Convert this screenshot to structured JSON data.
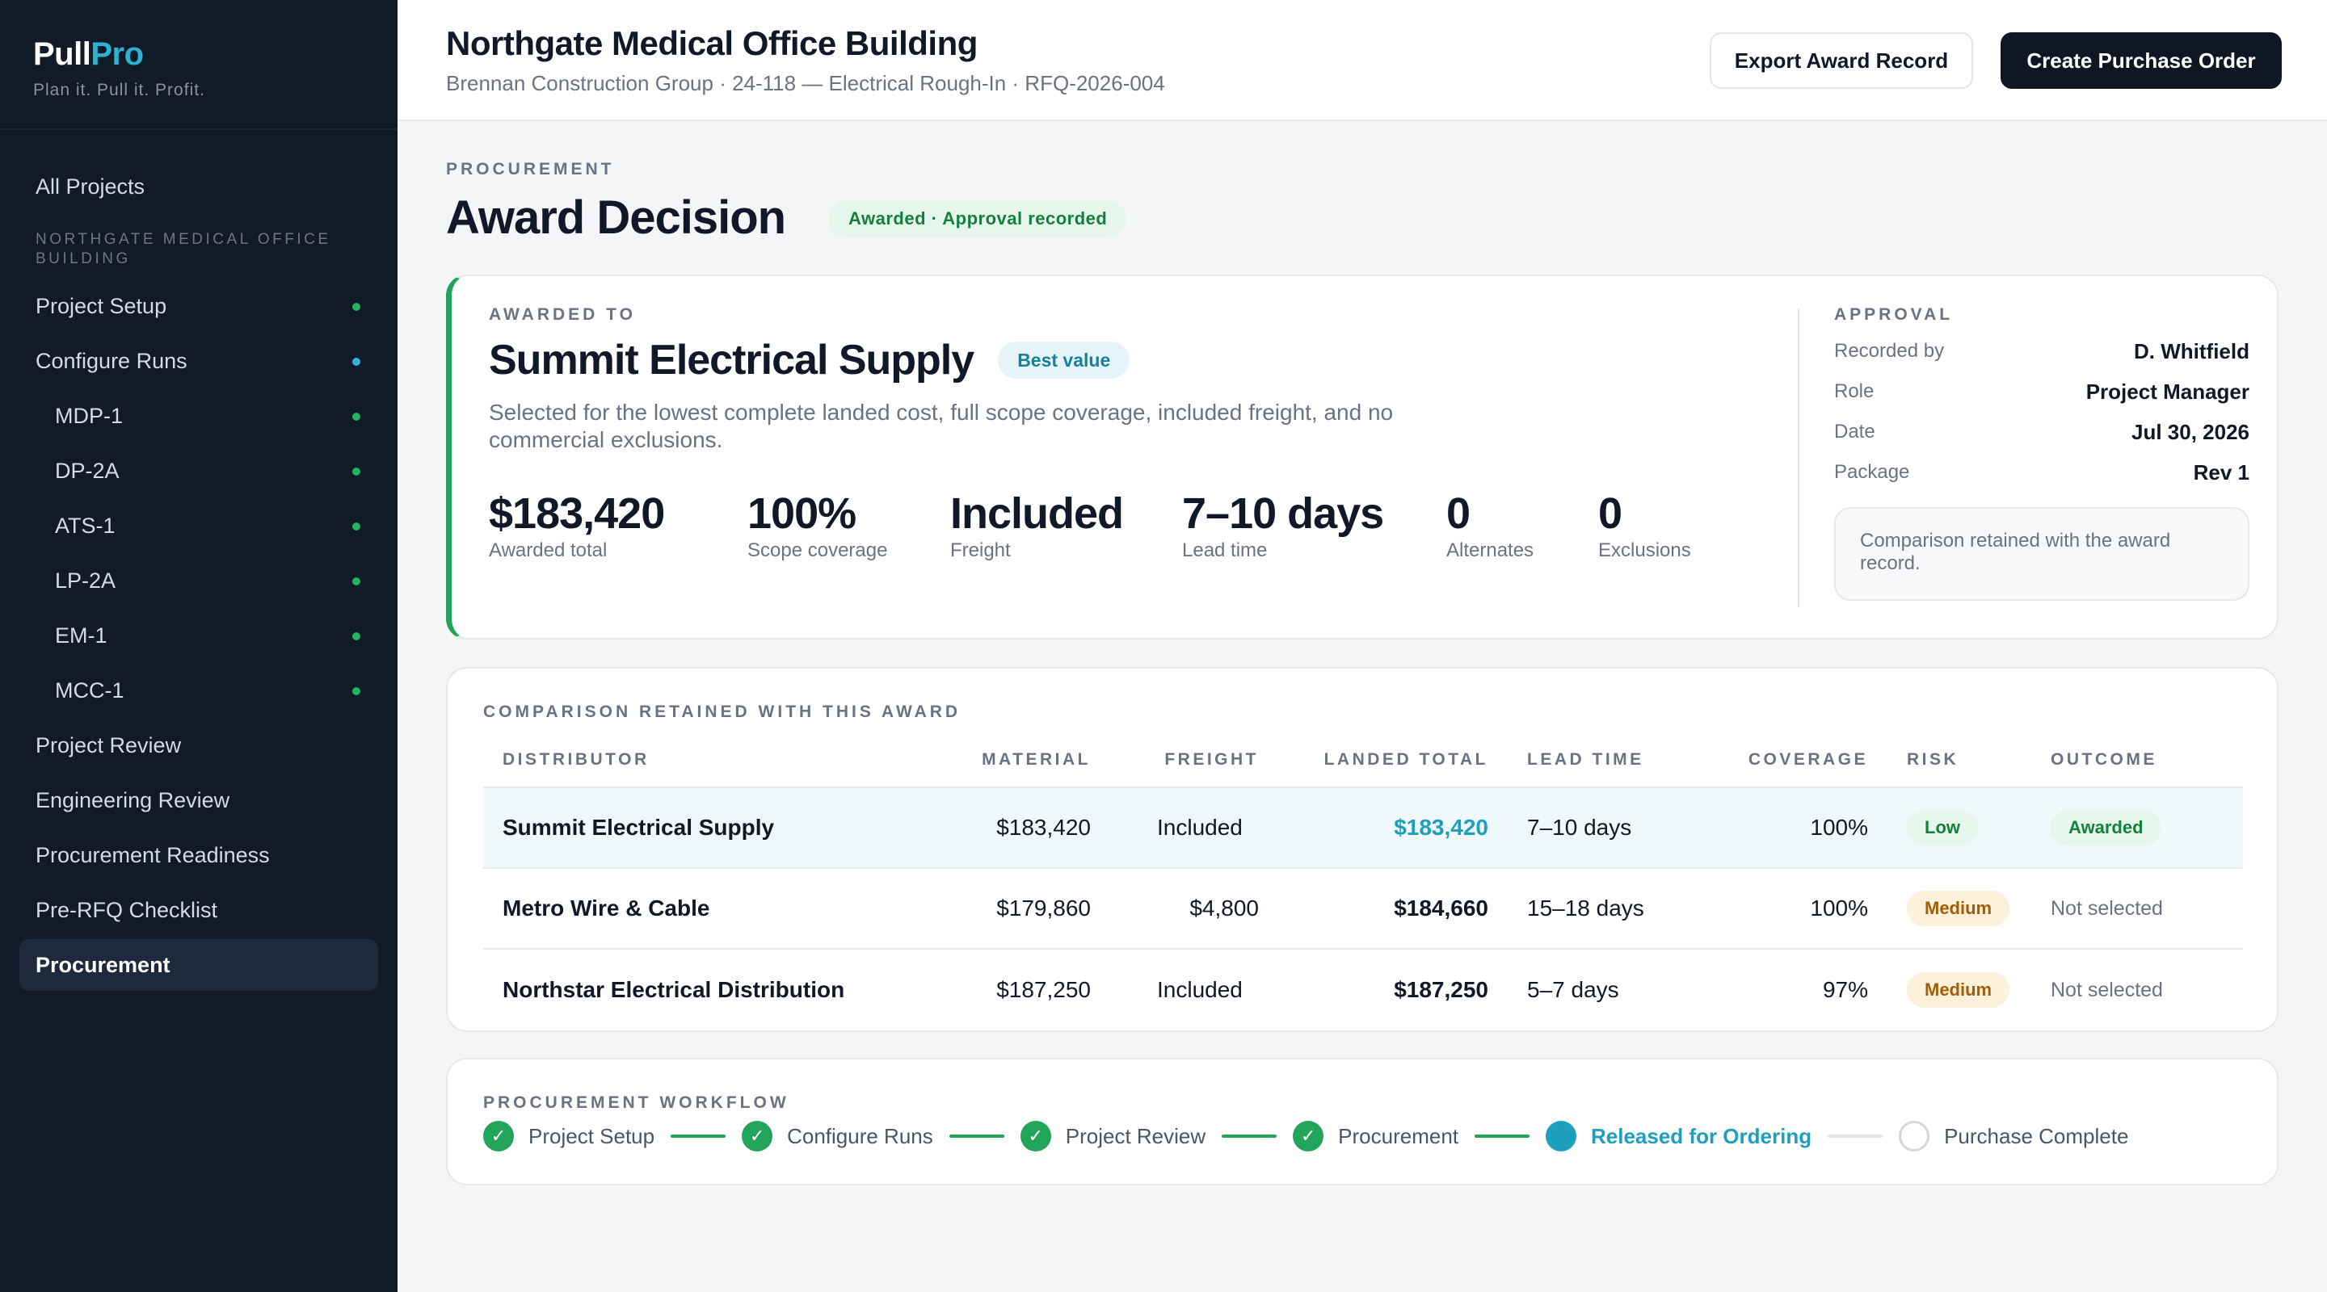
{
  "app": {
    "brand_prefix": "Pull",
    "brand_suffix": "Pro",
    "tagline": "Plan it. Pull it. Profit."
  },
  "sidebar": {
    "all_projects": "All Projects",
    "section_label": "NORTHGATE MEDICAL OFFICE BUILDING",
    "items": [
      {
        "label": "Project Setup",
        "status": "complete"
      },
      {
        "label": "Configure Runs",
        "status": "in-progress"
      },
      {
        "label": "MDP-1",
        "status": "complete"
      },
      {
        "label": "DP-2A",
        "status": "complete"
      },
      {
        "label": "ATS-1",
        "status": "complete"
      },
      {
        "label": "LP-2A",
        "status": "complete"
      },
      {
        "label": "EM-1",
        "status": "complete"
      },
      {
        "label": "MCC-1",
        "status": "complete"
      },
      {
        "label": "Project Review"
      },
      {
        "label": "Engineering Review"
      },
      {
        "label": "Procurement Readiness"
      },
      {
        "label": "Pre-RFQ Checklist"
      },
      {
        "label": "Procurement",
        "active": true
      }
    ]
  },
  "header": {
    "title": "Northgate Medical Office Building",
    "subtitle": "Brennan Construction Group · 24-118 — Electrical Rough-In · RFQ-2026-004",
    "export_button": "Export Award Record",
    "create_button": "Create Purchase Order"
  },
  "page": {
    "eyebrow": "PROCUREMENT",
    "title": "Award Decision",
    "status_badge": "Awarded · Approval recorded"
  },
  "award": {
    "eyebrow": "AWARDED TO",
    "supplier": "Summit Electrical Supply",
    "badge": "Best value",
    "description": "Selected for the lowest complete landed cost, full scope coverage, included freight, and no commercial exclusions.",
    "metrics": [
      {
        "value": "$183,420",
        "label": "Awarded total"
      },
      {
        "value": "100%",
        "label": "Scope coverage"
      },
      {
        "value": "Included",
        "label": "Freight"
      },
      {
        "value": "7–10 days",
        "label": "Lead time"
      },
      {
        "value": "0",
        "label": "Alternates"
      },
      {
        "value": "0",
        "label": "Exclusions"
      }
    ]
  },
  "approval": {
    "eyebrow": "APPROVAL",
    "rows": [
      {
        "key": "Recorded by",
        "value": "D. Whitfield"
      },
      {
        "key": "Role",
        "value": "Project Manager"
      },
      {
        "key": "Date",
        "value": "Jul 30, 2026"
      },
      {
        "key": "Package",
        "value": "Rev 1"
      }
    ],
    "note": "Comparison retained with the award record."
  },
  "comparison": {
    "eyebrow": "COMPARISON RETAINED WITH THIS AWARD",
    "columns": [
      "DISTRIBUTOR",
      "MATERIAL",
      "FREIGHT",
      "LANDED TOTAL",
      "LEAD TIME",
      "COVERAGE",
      "RISK",
      "OUTCOME"
    ],
    "rows": [
      {
        "distributor": "Summit Electrical Supply",
        "material": "$183,420",
        "freight": "Included",
        "landed_total": "$183,420",
        "lead_time": "7–10 days",
        "coverage": "100%",
        "risk": "Low",
        "outcome": "Awarded"
      },
      {
        "distributor": "Metro Wire & Cable",
        "material": "$179,860",
        "freight": "$4,800",
        "landed_total": "$184,660",
        "lead_time": "15–18 days",
        "coverage": "100%",
        "risk": "Medium",
        "outcome": "Not selected"
      },
      {
        "distributor": "Northstar Electrical Distribution",
        "material": "$187,250",
        "freight": "Included",
        "landed_total": "$187,250",
        "lead_time": "5–7 days",
        "coverage": "97%",
        "risk": "Medium",
        "outcome": "Not selected"
      }
    ]
  },
  "workflow": {
    "eyebrow": "PROCUREMENT WORKFLOW",
    "steps": [
      {
        "label": "Project Setup",
        "state": "done"
      },
      {
        "label": "Configure Runs",
        "state": "done"
      },
      {
        "label": "Project Review",
        "state": "done"
      },
      {
        "label": "Procurement",
        "state": "done"
      },
      {
        "label": "Released for Ordering",
        "state": "current"
      },
      {
        "label": "Purchase Complete",
        "state": "todo"
      }
    ],
    "check_glyph": "✓"
  },
  "colors": {
    "sidebar_bg": "#111a27",
    "brand_accent": "#2fb2d1",
    "success": "#22a55a",
    "teal": "#1d9fbd",
    "warning": "#a35d07",
    "primary_button": "#0f1724"
  }
}
